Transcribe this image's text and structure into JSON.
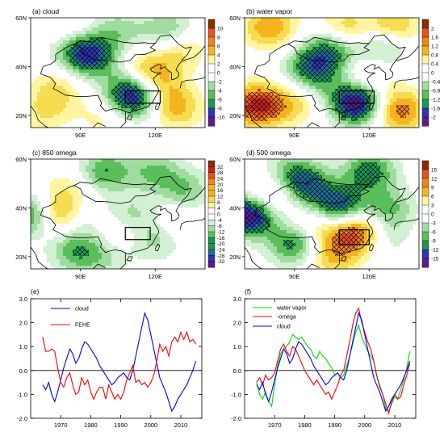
{
  "chart_data": [
    {
      "type": "heatmap",
      "panel": "a",
      "title": "(a) cloud",
      "x_ticks": [
        "90E",
        "120E"
      ],
      "y_ticks": [
        "60N",
        "40N",
        "20N"
      ],
      "colorbar_ticks": [
        "10",
        "8",
        "6",
        "4",
        "2",
        "0",
        "-2",
        "-4",
        "-6",
        "-8",
        "-10"
      ],
      "colors": [
        "#8a2e00",
        "#c81e1e",
        "#e8501e",
        "#f0821e",
        "#f5b41e",
        "#f5dc50",
        "#fff5a0",
        "#ffffff",
        "#ffffff",
        "#d2f0d2",
        "#a0dca0",
        "#5abe5a",
        "#1e9650",
        "#1e6e96",
        "#3232b4",
        "#5a1e8c"
      ],
      "blobs": [
        {
          "lon": 95,
          "lat": 44,
          "v": -6
        },
        {
          "lon": 88,
          "lat": 47,
          "v": -4
        },
        {
          "lon": 113,
          "lat": 27,
          "v": -7
        },
        {
          "lon": 108,
          "lat": 30,
          "v": -4
        },
        {
          "lon": 122,
          "lat": 30,
          "v": 3
        },
        {
          "lon": 117,
          "lat": 38,
          "v": 4
        },
        {
          "lon": 80,
          "lat": 30,
          "v": 3
        },
        {
          "lon": 75,
          "lat": 20,
          "v": 2
        },
        {
          "lon": 130,
          "lat": 47,
          "v": 3
        },
        {
          "lon": 105,
          "lat": 55,
          "v": -3
        },
        {
          "lon": 125,
          "lat": 55,
          "v": -4
        },
        {
          "lon": 85,
          "lat": 55,
          "v": 2
        },
        {
          "lon": 128,
          "lat": 23,
          "v": 4
        },
        {
          "lon": 100,
          "lat": 20,
          "v": 2
        }
      ],
      "box": {
        "lon": [
          108,
          122
        ],
        "lat": [
          25,
          30
        ]
      }
    },
    {
      "type": "heatmap",
      "panel": "b",
      "title": "(b) water vapor",
      "x_ticks": [
        "90E",
        "120E"
      ],
      "y_ticks": [
        "60N",
        "40N",
        "20N"
      ],
      "colorbar_ticks": [
        "2",
        "1.6",
        "1.2",
        "0.8",
        "0.4",
        "0",
        "-0.4",
        "-0.8",
        "-1.2",
        "-1.6",
        "-2"
      ],
      "colors": [
        "#8a2e00",
        "#c81e1e",
        "#e8501e",
        "#f0821e",
        "#f5b41e",
        "#f5dc50",
        "#fff5a0",
        "#ffffff",
        "#ffffff",
        "#d2f0d2",
        "#a0dca0",
        "#5abe5a",
        "#1e9650",
        "#1e6e96",
        "#3232b4",
        "#5a1e8c"
      ],
      "blobs": [
        {
          "lon": 115,
          "lat": 25,
          "v": -2
        },
        {
          "lon": 105,
          "lat": 47,
          "v": -1.2
        },
        {
          "lon": 95,
          "lat": 40,
          "v": -0.8
        },
        {
          "lon": 125,
          "lat": 47,
          "v": -0.8
        },
        {
          "lon": 75,
          "lat": 24,
          "v": 1.6
        },
        {
          "lon": 132,
          "lat": 22,
          "v": 1.2
        },
        {
          "lon": 80,
          "lat": 56,
          "v": 1.0
        },
        {
          "lon": 110,
          "lat": 55,
          "v": 0.8
        },
        {
          "lon": 90,
          "lat": 25,
          "v": 0.6
        },
        {
          "lon": 100,
          "lat": 35,
          "v": -0.6
        },
        {
          "lon": 120,
          "lat": 37,
          "v": 0.6
        },
        {
          "lon": 130,
          "lat": 57,
          "v": 0.8
        }
      ],
      "box": {
        "lon": [
          108,
          122
        ],
        "lat": [
          25,
          30
        ]
      }
    },
    {
      "type": "heatmap",
      "panel": "c",
      "title": "(c) 850 omega",
      "x_ticks": [
        "90E",
        "120E"
      ],
      "y_ticks": [
        "60N",
        "40N",
        "20N"
      ],
      "colorbar_ticks": [
        "32",
        "28",
        "24",
        "20",
        "16",
        "12",
        "8",
        "4",
        "0",
        "-4",
        "-8",
        "-12",
        "-16",
        "-20",
        "-24",
        "-28",
        "-32"
      ],
      "colors": [
        "#8a2e00",
        "#c81e1e",
        "#e8501e",
        "#f0821e",
        "#f5b41e",
        "#f5dc50",
        "#fff5a0",
        "#ffffff",
        "#ffffff",
        "#d2f0d2",
        "#a0dca0",
        "#5abe5a",
        "#1e9650",
        "#1e6e96",
        "#3232b4",
        "#5a1e8c"
      ],
      "blobs": [
        {
          "lon": 72,
          "lat": 37,
          "v": -32
        },
        {
          "lon": 78,
          "lat": 37,
          "v": 28
        },
        {
          "lon": 100,
          "lat": 55,
          "v": -16
        },
        {
          "lon": 120,
          "lat": 55,
          "v": -12
        },
        {
          "lon": 132,
          "lat": 47,
          "v": -12
        },
        {
          "lon": 110,
          "lat": 37,
          "v": -10
        },
        {
          "lon": 88,
          "lat": 22,
          "v": -14
        },
        {
          "lon": 120,
          "lat": 27,
          "v": -10
        },
        {
          "lon": 85,
          "lat": 48,
          "v": 6
        },
        {
          "lon": 105,
          "lat": 30,
          "v": 8
        },
        {
          "lon": 90,
          "lat": 33,
          "v": -6
        },
        {
          "lon": 128,
          "lat": 35,
          "v": 6
        },
        {
          "lon": 100,
          "lat": 20,
          "v": -8
        }
      ],
      "box": {
        "lon": [
          108,
          118
        ],
        "lat": [
          27,
          32
        ]
      }
    },
    {
      "type": "heatmap",
      "panel": "d",
      "title": "(d) 500 omega",
      "x_ticks": [
        "90E",
        "120E"
      ],
      "y_ticks": [
        "60N",
        "40N",
        "20N"
      ],
      "colorbar_ticks": [
        "15",
        "12",
        "9",
        "6",
        "3",
        "0",
        "-3",
        "-6",
        "-9",
        "-12",
        "-15"
      ],
      "colors": [
        "#8a2e00",
        "#c81e1e",
        "#e8501e",
        "#f0821e",
        "#f5b41e",
        "#f5dc50",
        "#fff5a0",
        "#ffffff",
        "#ffffff",
        "#d2f0d2",
        "#a0dca0",
        "#5abe5a",
        "#1e9650",
        "#1e6e96",
        "#3232b4",
        "#5a1e8c"
      ],
      "blobs": [
        {
          "lon": 72,
          "lat": 37,
          "v": -15
        },
        {
          "lon": 115,
          "lat": 30,
          "v": 12
        },
        {
          "lon": 108,
          "lat": 40,
          "v": -12
        },
        {
          "lon": 95,
          "lat": 49,
          "v": -9
        },
        {
          "lon": 120,
          "lat": 55,
          "v": -9
        },
        {
          "lon": 80,
          "lat": 45,
          "v": 6
        },
        {
          "lon": 90,
          "lat": 25,
          "v": -9
        },
        {
          "lon": 128,
          "lat": 40,
          "v": -6
        },
        {
          "lon": 100,
          "lat": 33,
          "v": 5
        },
        {
          "lon": 88,
          "lat": 55,
          "v": -5
        },
        {
          "lon": 125,
          "lat": 28,
          "v": -4
        },
        {
          "lon": 105,
          "lat": 20,
          "v": 6
        }
      ],
      "box": {
        "lon": [
          108,
          120
        ],
        "lat": [
          25,
          31
        ]
      }
    },
    {
      "type": "line",
      "panel": "e",
      "title": "(e)",
      "ylim": [
        -2.0,
        3.0
      ],
      "xlim": [
        1960,
        2017
      ],
      "yticks": [
        "3.0",
        "2.0",
        "1.0",
        "0.0",
        "-1.0",
        "-2.0"
      ],
      "xticks": [
        "1970",
        "1980",
        "1990",
        "2000",
        "2010"
      ],
      "x": [
        1964,
        1965,
        1966,
        1967,
        1968,
        1969,
        1970,
        1971,
        1972,
        1973,
        1974,
        1975,
        1976,
        1977,
        1978,
        1979,
        1980,
        1981,
        1982,
        1983,
        1984,
        1985,
        1986,
        1987,
        1988,
        1989,
        1990,
        1991,
        1992,
        1993,
        1994,
        1995,
        1996,
        1997,
        1998,
        1999,
        2000,
        2001,
        2002,
        2003,
        2004,
        2005,
        2006,
        2007,
        2008,
        2009,
        2010,
        2011,
        2012,
        2013,
        2014,
        2015
      ],
      "series": [
        {
          "name": "cloud",
          "color": "#0000ff",
          "values": [
            -0.6,
            -0.8,
            -0.5,
            -1.0,
            -1.3,
            -0.9,
            -0.4,
            0.1,
            0.5,
            0.9,
            0.7,
            0.3,
            0.5,
            0.9,
            1.2,
            1.1,
            0.9,
            0.7,
            0.5,
            0.2,
            0.0,
            -0.2,
            -0.4,
            -0.6,
            -0.5,
            -0.3,
            -0.2,
            -0.1,
            -0.3,
            -0.4,
            0.0,
            0.6,
            1.2,
            1.8,
            2.4,
            2.1,
            1.5,
            0.9,
            0.3,
            -0.3,
            -0.6,
            -0.9,
            -1.3,
            -1.7,
            -1.5,
            -1.2,
            -1.0,
            -0.8,
            -0.6,
            -0.3,
            0.0,
            0.4
          ]
        },
        {
          "name": "FEHE",
          "color": "#ff0000",
          "values": [
            1.4,
            0.8,
            0.8,
            0.9,
            0.8,
            0.1,
            -0.5,
            -0.7,
            -0.3,
            -0.1,
            -0.6,
            -1.0,
            -0.9,
            -0.3,
            -0.6,
            -0.4,
            -0.9,
            -1.2,
            -0.9,
            -0.7,
            -0.7,
            -1.2,
            -0.6,
            -0.9,
            -1.2,
            -1.0,
            -1.2,
            -0.9,
            -0.4,
            -0.1,
            0.2,
            -0.5,
            -0.4,
            -0.6,
            -0.5,
            -0.7,
            -0.5,
            -0.2,
            0.4,
            1.1,
            0.8,
            1.0,
            0.6,
            1.2,
            1.4,
            1.2,
            1.6,
            1.3,
            1.6,
            1.2,
            1.3,
            1.1
          ]
        }
      ]
    },
    {
      "type": "line",
      "panel": "f",
      "title": "(f)",
      "ylim": [
        -2.0,
        3.0
      ],
      "xlim": [
        1960,
        2017
      ],
      "yticks": [
        "3.0",
        "2.0",
        "1.0",
        "0.0",
        "-1.0",
        "-2.0"
      ],
      "xticks": [
        "1970",
        "1980",
        "1990",
        "2000",
        "2010"
      ],
      "x": [
        1964,
        1965,
        1966,
        1967,
        1968,
        1969,
        1970,
        1971,
        1972,
        1973,
        1974,
        1975,
        1976,
        1977,
        1978,
        1979,
        1980,
        1981,
        1982,
        1983,
        1984,
        1985,
        1986,
        1987,
        1988,
        1989,
        1990,
        1991,
        1992,
        1993,
        1994,
        1995,
        1996,
        1997,
        1998,
        1999,
        2000,
        2001,
        2002,
        2003,
        2004,
        2005,
        2006,
        2007,
        2008,
        2009,
        2010,
        2011,
        2012,
        2013,
        2014,
        2015
      ],
      "series": [
        {
          "name": "water vapor",
          "color": "#00dd00",
          "values": [
            -0.5,
            -1.0,
            -1.2,
            -0.9,
            -1.3,
            -1.5,
            -0.6,
            0.2,
            0.7,
            0.9,
            1.0,
            1.2,
            1.5,
            1.4,
            1.3,
            1.4,
            1.2,
            1.0,
            0.9,
            0.6,
            0.5,
            0.8,
            0.6,
            0.5,
            0.3,
            0.1,
            -0.2,
            -0.1,
            -0.3,
            -0.2,
            0.2,
            0.6,
            1.1,
            1.6,
            1.9,
            1.4,
            1.1,
            0.8,
            0.6,
            0.4,
            -0.2,
            -0.6,
            -1.0,
            -1.6,
            -1.7,
            -1.4,
            -1.1,
            -1.2,
            -0.8,
            -0.4,
            0.1,
            0.8
          ]
        },
        {
          "name": "-omega",
          "color": "#ff0000",
          "values": [
            -0.5,
            -0.3,
            -0.6,
            -0.2,
            -0.4,
            -0.3,
            -0.1,
            0.4,
            0.9,
            1.1,
            0.8,
            0.6,
            1.0,
            0.9,
            0.6,
            0.3,
            0.0,
            -0.2,
            -0.4,
            -0.6,
            -0.4,
            -0.6,
            -0.8,
            -1.0,
            -0.9,
            -1.2,
            -0.9,
            -0.6,
            -0.2,
            0.0,
            0.6,
            1.2,
            1.9,
            2.4,
            2.6,
            2.0,
            1.6,
            1.2,
            0.9,
            0.4,
            -0.2,
            -0.7,
            -1.0,
            -1.4,
            -1.8,
            -1.3,
            -1.0,
            -1.2,
            -1.1,
            -0.6,
            -0.2,
            0.3
          ]
        },
        {
          "name": "cloud",
          "color": "#0000ff",
          "values": [
            -0.6,
            -0.8,
            -0.5,
            -1.0,
            -1.3,
            -0.9,
            -0.4,
            0.1,
            0.5,
            0.9,
            0.7,
            0.3,
            0.5,
            0.9,
            1.2,
            1.1,
            0.9,
            0.7,
            0.5,
            0.2,
            0.0,
            -0.2,
            -0.4,
            -0.6,
            -0.5,
            -0.3,
            -0.2,
            -0.1,
            -0.3,
            -0.4,
            0.0,
            0.6,
            1.2,
            1.8,
            2.4,
            2.1,
            1.5,
            0.9,
            0.3,
            -0.3,
            -0.6,
            -0.9,
            -1.3,
            -1.7,
            -1.5,
            -1.2,
            -1.0,
            -0.8,
            -0.6,
            -0.3,
            0.0,
            0.4
          ]
        }
      ]
    }
  ]
}
